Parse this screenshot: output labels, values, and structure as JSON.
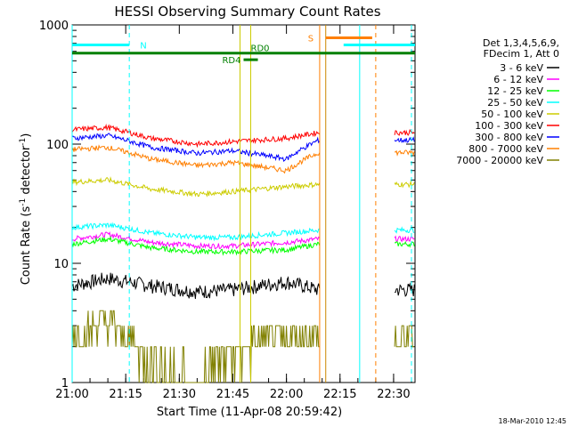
{
  "chart_data": {
    "type": "line",
    "title": "HESSI Observing Summary Count Rates",
    "xlabel": "Start Time (11-Apr-08 20:59:42)",
    "ylabel_main": "Count Rate (s",
    "ylabel_sup1": "-1",
    "ylabel_mid": " detector",
    "ylabel_sup2": "-1",
    "ylabel_end": ")",
    "yscale": "log",
    "xlim_min": [
      0,
      96
    ],
    "ylim": [
      1,
      1000
    ],
    "x_ticks": [
      {
        "min": 0,
        "label": "21:00"
      },
      {
        "min": 15,
        "label": "21:15"
      },
      {
        "min": 30,
        "label": "21:30"
      },
      {
        "min": 45,
        "label": "21:45"
      },
      {
        "min": 60,
        "label": "22:00"
      },
      {
        "min": 75,
        "label": "22:15"
      },
      {
        "min": 90,
        "label": "22:30"
      }
    ],
    "y_ticks": [
      {
        "value": 1,
        "label": "1"
      },
      {
        "value": 10,
        "label": "10"
      },
      {
        "value": 100,
        "label": "100"
      },
      {
        "value": 1000,
        "label": "1000"
      }
    ],
    "legend_header": [
      "Det 1,3,4,5,6,9,",
      "FDecim 1, Att 0"
    ],
    "series": [
      {
        "name": "3 - 6 keV",
        "color": "#000000",
        "values": [
          6.5,
          7.5,
          6.5,
          5.8,
          6.0,
          7.0,
          6.0
        ]
      },
      {
        "name": "6 - 12 keV",
        "color": "#ff00ff",
        "values": [
          16,
          17.5,
          15,
          14,
          14,
          15,
          16
        ]
      },
      {
        "name": "12 - 25 keV",
        "color": "#00ff00",
        "values": [
          14.5,
          16,
          13.5,
          12.5,
          12.5,
          13,
          14.5
        ]
      },
      {
        "name": "25 - 50 keV",
        "color": "#00ffff",
        "values": [
          20,
          21,
          18,
          16.5,
          16.5,
          18,
          19
        ]
      },
      {
        "name": "50 - 100 keV",
        "color": "#cccc00",
        "values": [
          48,
          50,
          42,
          38,
          40,
          44,
          46
        ]
      },
      {
        "name": "100 - 300 keV",
        "color": "#ff0000",
        "values": [
          132,
          138,
          112,
          100,
          105,
          112,
          125
        ]
      },
      {
        "name": "300 - 800 keV",
        "color": "#0000ff",
        "values": [
          112,
          118,
          94,
          84,
          88,
          75,
          108
        ]
      },
      {
        "name": "800 - 7000 keV",
        "color": "#ff7f00",
        "values": [
          90,
          94,
          75,
          66,
          70,
          60,
          85
        ]
      },
      {
        "name": "7000 - 20000 keV",
        "color": "#808000",
        "values": [
          2.4,
          3.2,
          1.5,
          1.1,
          1.8,
          2.4,
          2.4
        ]
      }
    ],
    "series_x_min": [
      0,
      10,
      22,
      35,
      45,
      60,
      69
    ],
    "gap_min": [
      69.3,
      90.3
    ],
    "flag_bars": [
      {
        "label": "N",
        "color": "#00ffff",
        "y": 680,
        "x0": 0,
        "x1": 16,
        "x2": 76,
        "x3": 96
      },
      {
        "label": "",
        "color": "#008000",
        "y": 580,
        "x0": 0,
        "x1": 96,
        "x2": null,
        "x3": null
      },
      {
        "label": "RD0",
        "color": "#008000",
        "y": 580,
        "x0": null,
        "x1": null,
        "x2": null,
        "x3": null
      },
      {
        "label": "RD4",
        "color": "#008000",
        "y": 510,
        "x0": 48,
        "x1": 52,
        "x2": null,
        "x3": null
      },
      {
        "label": "S",
        "color": "#ff7f00",
        "y": 780,
        "x0": 71,
        "x1": 84,
        "x2": null,
        "x3": null
      }
    ],
    "vlines": [
      {
        "min": 0,
        "color": "#00ffff",
        "dash": false
      },
      {
        "min": 16,
        "color": "#00ffff",
        "dash": true
      },
      {
        "min": 47,
        "color": "#cccc00",
        "dash": false
      },
      {
        "min": 50,
        "color": "#cccc00",
        "dash": false
      },
      {
        "min": 69.3,
        "color": "#ff7f00",
        "dash": false
      },
      {
        "min": 71,
        "color": "#cc8800",
        "dash": false
      },
      {
        "min": 80.5,
        "color": "#00ffff",
        "dash": false
      },
      {
        "min": 85,
        "color": "#ff7f00",
        "dash": true
      },
      {
        "min": 95,
        "color": "#00ffff",
        "dash": true
      }
    ],
    "timestamp": "18-Mar-2010 12:45"
  }
}
